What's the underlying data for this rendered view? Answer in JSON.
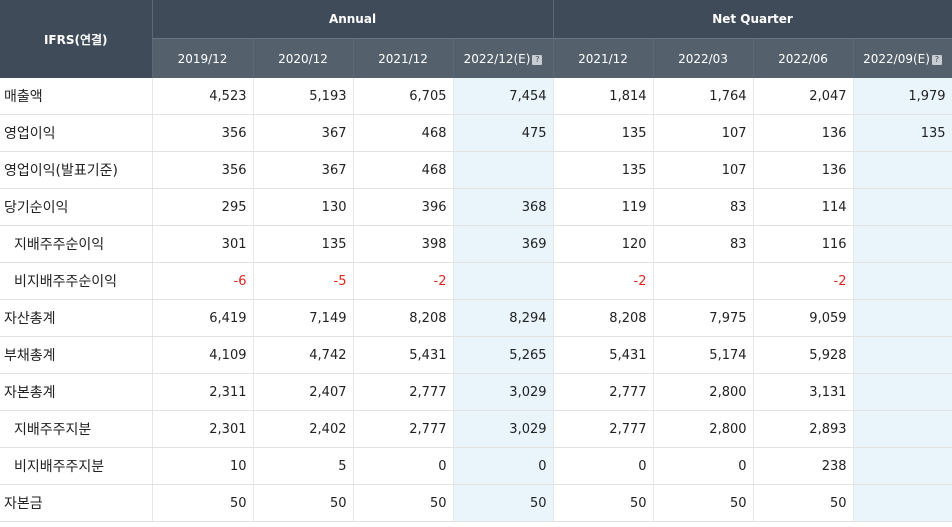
{
  "header": {
    "corner": "IFRS(연결)",
    "annual_label": "Annual",
    "quarter_label": "Net Quarter",
    "periods": [
      "2019/12",
      "2020/12",
      "2021/12",
      "2022/12(E)",
      "2021/12",
      "2022/03",
      "2022/06",
      "2022/09(E)"
    ]
  },
  "rows": [
    {
      "label": "매출액",
      "values": [
        "4,523",
        "5,193",
        "6,705",
        "7,454",
        "1,814",
        "1,764",
        "2,047",
        "1,979"
      ]
    },
    {
      "label": "영업이익",
      "values": [
        "356",
        "367",
        "468",
        "475",
        "135",
        "107",
        "136",
        "135"
      ]
    },
    {
      "label": "영업이익(발표기준)",
      "values": [
        "356",
        "367",
        "468",
        "",
        "135",
        "107",
        "136",
        ""
      ]
    },
    {
      "label": "당기순이익",
      "values": [
        "295",
        "130",
        "396",
        "368",
        "119",
        "83",
        "114",
        ""
      ]
    },
    {
      "label": "지배주주순이익",
      "values": [
        "301",
        "135",
        "398",
        "369",
        "120",
        "83",
        "116",
        ""
      ]
    },
    {
      "label": "비지배주주순이익",
      "values": [
        "-6",
        "-5",
        "-2",
        "",
        "-2",
        "",
        "-2",
        ""
      ]
    },
    {
      "label": "자산총계",
      "values": [
        "6,419",
        "7,149",
        "8,208",
        "8,294",
        "8,208",
        "7,975",
        "9,059",
        ""
      ]
    },
    {
      "label": "부채총계",
      "values": [
        "4,109",
        "4,742",
        "5,431",
        "5,265",
        "5,431",
        "5,174",
        "5,928",
        ""
      ]
    },
    {
      "label": "자본총계",
      "values": [
        "2,311",
        "2,407",
        "2,777",
        "3,029",
        "2,777",
        "2,800",
        "3,131",
        ""
      ]
    },
    {
      "label": "지배주주지분",
      "values": [
        "2,301",
        "2,402",
        "2,777",
        "3,029",
        "2,777",
        "2,800",
        "2,893",
        ""
      ]
    },
    {
      "label": "비지배주주지분",
      "values": [
        "10",
        "5",
        "0",
        "0",
        "0",
        "0",
        "238",
        ""
      ]
    },
    {
      "label": "자본금",
      "values": [
        "50",
        "50",
        "50",
        "50",
        "50",
        "50",
        "50",
        ""
      ]
    }
  ],
  "subRows": [
    4,
    5,
    9,
    10
  ],
  "estimateColumns": [
    3,
    7
  ],
  "helpIcons": [
    3,
    7
  ],
  "colors": {
    "header": "#3f4b59",
    "subheader": "#55606d",
    "estimate": "#e9f4fb",
    "negative": "#e0261f"
  }
}
